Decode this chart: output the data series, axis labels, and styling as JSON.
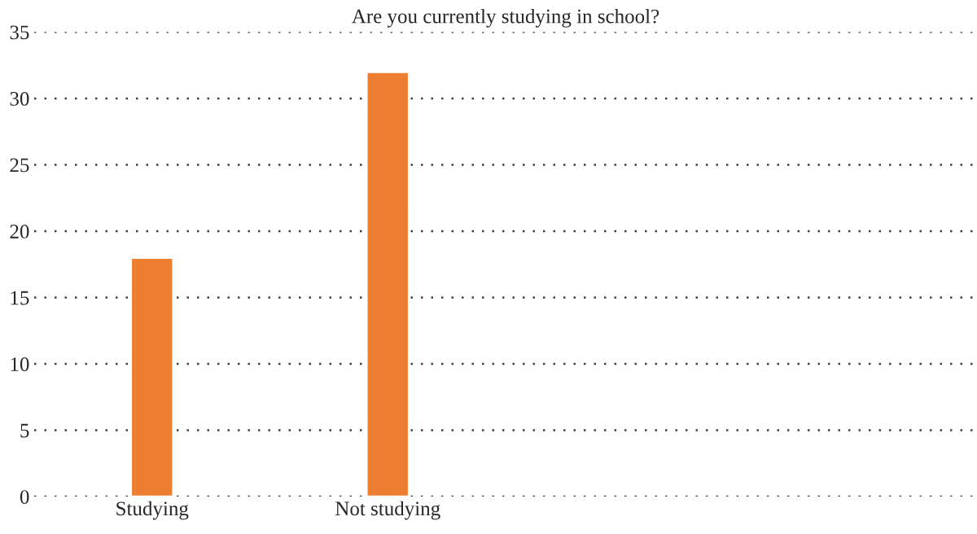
{
  "chart_data": {
    "type": "bar",
    "title": "Are you currently studying in school?",
    "categories": [
      "Studying",
      "Not studying",
      null,
      null
    ],
    "values": [
      18,
      32,
      null,
      null
    ],
    "color": "#ed7d31",
    "ylim": [
      0,
      35
    ],
    "yticks": [
      0,
      5,
      10,
      15,
      20,
      25,
      30,
      35
    ],
    "grid": "y",
    "legend": false
  }
}
